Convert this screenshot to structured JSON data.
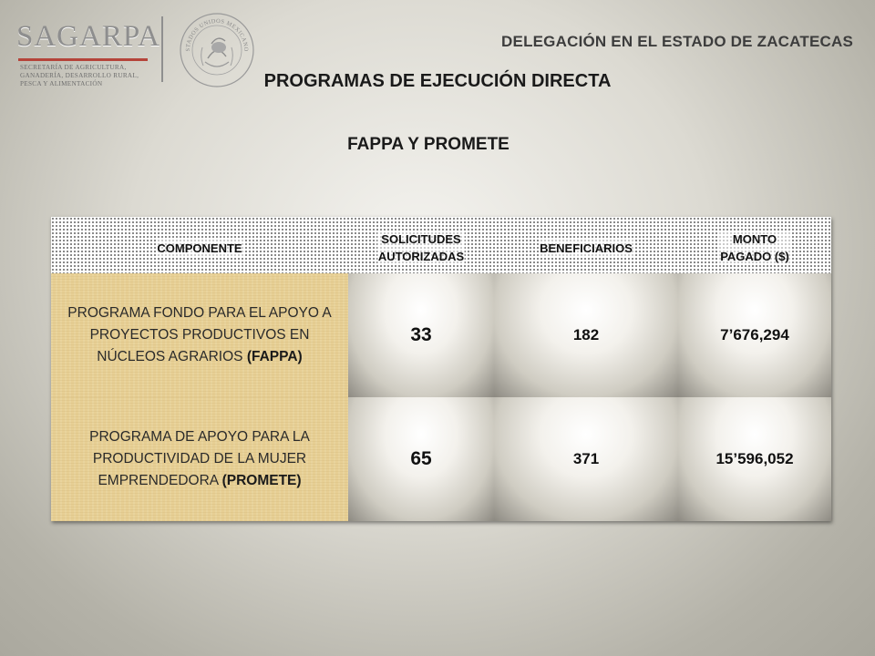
{
  "header": {
    "logo_wordmark": "SAGARPA",
    "logo_subtitle": "SECRETARÍA DE AGRICULTURA, GANADERÍA, DESARROLLO RURAL, PESCA Y ALIMENTACIÓN",
    "seal_text": "ESTADOS UNIDOS MEXICANOS",
    "delegation": "DELEGACIÓN EN EL ESTADO DE ZACATECAS"
  },
  "title": "PROGRAMAS DE EJECUCIÓN DIRECTA",
  "subtitle": "FAPPA Y PROMETE",
  "table": {
    "headers": [
      "COMPONENTE",
      "SOLICITUDES\nAUTORIZADAS",
      "BENEFICIARIOS",
      "MONTO\nPAGADO ($)"
    ],
    "rows": [
      {
        "program": "PROGRAMA FONDO PARA EL APOYO A PROYECTOS PRODUCTIVOS EN NÚCLEOS AGRARIOS",
        "acronym": "(FAPPA)",
        "solicitudes": "33",
        "beneficiarios": "182",
        "monto": "7’676,294"
      },
      {
        "program": "PROGRAMA DE APOYO PARA LA PRODUCTIVIDAD DE LA MUJER EMPRENDEDORA",
        "acronym": "(PROMETE)",
        "solicitudes": "65",
        "beneficiarios": "371",
        "monto": "15’596,052"
      }
    ]
  },
  "colors": {
    "program_cell": "#e7cf94",
    "logo_red": "#b5443a",
    "text": "#1a1a1a"
  }
}
